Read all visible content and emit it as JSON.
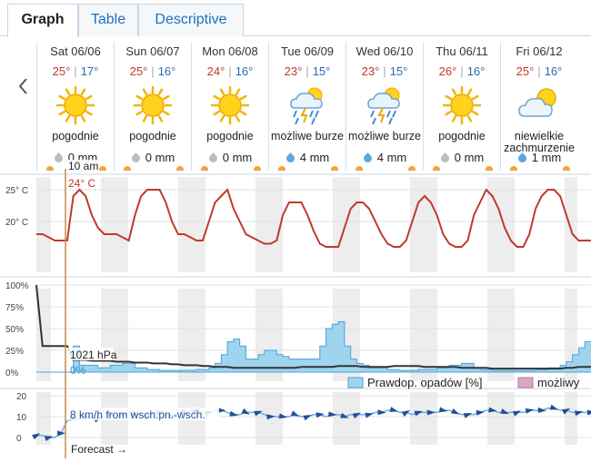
{
  "tabs": [
    {
      "label": "Graph",
      "active": true
    },
    {
      "label": "Table",
      "active": false
    },
    {
      "label": "Descriptive",
      "active": false
    }
  ],
  "days": [
    {
      "date": "Sat 06/06",
      "max": "25°",
      "min": "17°",
      "icon": "sun-icon",
      "desc": "pogodnie",
      "precip": "0 mm",
      "wet": false
    },
    {
      "date": "Sun 06/07",
      "max": "25°",
      "min": "16°",
      "icon": "sun-icon",
      "desc": "pogodnie",
      "precip": "0 mm",
      "wet": false
    },
    {
      "date": "Mon 06/08",
      "max": "24°",
      "min": "16°",
      "icon": "sun-icon",
      "desc": "pogodnie",
      "precip": "0 mm",
      "wet": false
    },
    {
      "date": "Tue 06/09",
      "max": "23°",
      "min": "15°",
      "icon": "storm-icon",
      "desc": "możliwe burze",
      "precip": "4 mm",
      "wet": true
    },
    {
      "date": "Wed 06/10",
      "max": "23°",
      "min": "15°",
      "icon": "storm-icon",
      "desc": "możliwe burze",
      "precip": "4 mm",
      "wet": true
    },
    {
      "date": "Thu 06/11",
      "max": "26°",
      "min": "16°",
      "icon": "sun-icon",
      "desc": "pogodnie",
      "precip": "0 mm",
      "wet": false
    },
    {
      "date": "Fri 06/12",
      "max": "25°",
      "min": "16°",
      "icon": "partly-cloudy-icon",
      "desc": "niewielkie zachmurzenie",
      "precip": "1 mm",
      "wet": true
    }
  ],
  "cursor": {
    "time": "10 am",
    "temp": "24° C",
    "pressure": "1021 hPa",
    "precip_prob": "0%",
    "wind": "8 km/h from wsch.pn.-wsch."
  },
  "temp_chart": {
    "y_ticks": [
      "25° C",
      "20° C"
    ],
    "values": [
      18,
      18,
      17.5,
      17,
      17,
      17,
      24,
      25,
      24,
      21,
      19,
      18,
      18,
      18,
      17.5,
      17,
      21,
      24,
      25,
      25,
      25,
      23,
      20,
      18,
      18,
      17.5,
      17,
      17,
      20,
      23,
      24,
      25,
      22,
      20,
      18,
      17.5,
      17,
      16.5,
      16.5,
      17,
      21,
      23,
      23,
      23,
      21,
      18.5,
      16.5,
      16,
      16,
      16,
      19,
      22,
      23,
      23,
      22,
      20,
      18,
      16.5,
      16,
      16,
      17,
      20,
      23,
      24,
      23,
      21,
      18,
      16.5,
      16,
      16,
      17,
      21,
      23,
      25,
      24,
      22,
      19,
      17,
      16,
      16,
      18,
      22,
      24,
      25,
      25,
      24,
      21,
      18,
      17,
      17,
      17
    ]
  },
  "precip_chart": {
    "y_ticks": [
      "100%",
      "75%",
      "50%",
      "25%",
      "0%"
    ],
    "legend": [
      {
        "label": "Prawdop. opadów [%]",
        "color": "#9fd4ef"
      },
      {
        "label": "możliwy",
        "color": "#d9a6c4"
      }
    ],
    "pressure_values": [
      100,
      30,
      30,
      30,
      30,
      30,
      14,
      14,
      14,
      13,
      13,
      13,
      13,
      12,
      12,
      12,
      11,
      11,
      11,
      10,
      10,
      10,
      9,
      9,
      8,
      8,
      8,
      7,
      7,
      6,
      6,
      6,
      5,
      5,
      5,
      5,
      5,
      5,
      5,
      5,
      5,
      5,
      5,
      6,
      6,
      6,
      6,
      6,
      6,
      7,
      7,
      7,
      7,
      6,
      6,
      6,
      6,
      6,
      7,
      7,
      7,
      7,
      7,
      6,
      6,
      6,
      6,
      6,
      6,
      5,
      5,
      5,
      5,
      5,
      4,
      4,
      4,
      4,
      4,
      4,
      4,
      4,
      4,
      4,
      4,
      4,
      5,
      5,
      6,
      6,
      6
    ],
    "precip_values": [
      0,
      0,
      0,
      0,
      0,
      0,
      30,
      8,
      8,
      8,
      5,
      5,
      8,
      8,
      10,
      10,
      5,
      5,
      3,
      3,
      2,
      2,
      2,
      2,
      2,
      2,
      3,
      3,
      5,
      10,
      20,
      35,
      38,
      30,
      15,
      15,
      20,
      25,
      25,
      20,
      18,
      15,
      15,
      15,
      15,
      15,
      30,
      50,
      55,
      58,
      30,
      15,
      10,
      8,
      5,
      5,
      5,
      3,
      3,
      2,
      2,
      2,
      3,
      3,
      3,
      5,
      5,
      8,
      8,
      10,
      10,
      5,
      3,
      3,
      2,
      2,
      2,
      2,
      2,
      2,
      2,
      3,
      3,
      5,
      5,
      8,
      12,
      20,
      28,
      35,
      35
    ]
  },
  "wind_chart": {
    "y_ticks": [
      "20",
      "10",
      "0"
    ],
    "values": [
      1,
      1,
      0,
      0,
      2,
      8,
      9,
      9,
      10,
      10,
      9,
      10,
      11,
      10,
      11,
      12,
      11,
      11,
      10,
      12,
      12,
      11,
      10,
      12,
      12,
      13,
      13,
      12,
      12,
      13,
      13,
      12,
      11,
      11,
      12,
      12,
      12,
      11,
      10,
      10,
      10,
      10,
      11,
      10,
      10,
      11,
      11,
      10,
      11,
      11,
      10,
      11,
      11,
      11,
      11,
      12,
      12,
      13,
      13,
      12,
      12,
      11,
      12,
      12,
      12,
      12,
      13,
      13,
      12,
      11,
      11,
      11,
      12,
      13,
      13,
      12,
      12,
      12,
      12,
      12,
      13,
      13,
      13,
      14,
      14,
      13,
      13,
      12,
      12,
      12,
      12
    ]
  },
  "forecast_label": "Forecast →"
}
